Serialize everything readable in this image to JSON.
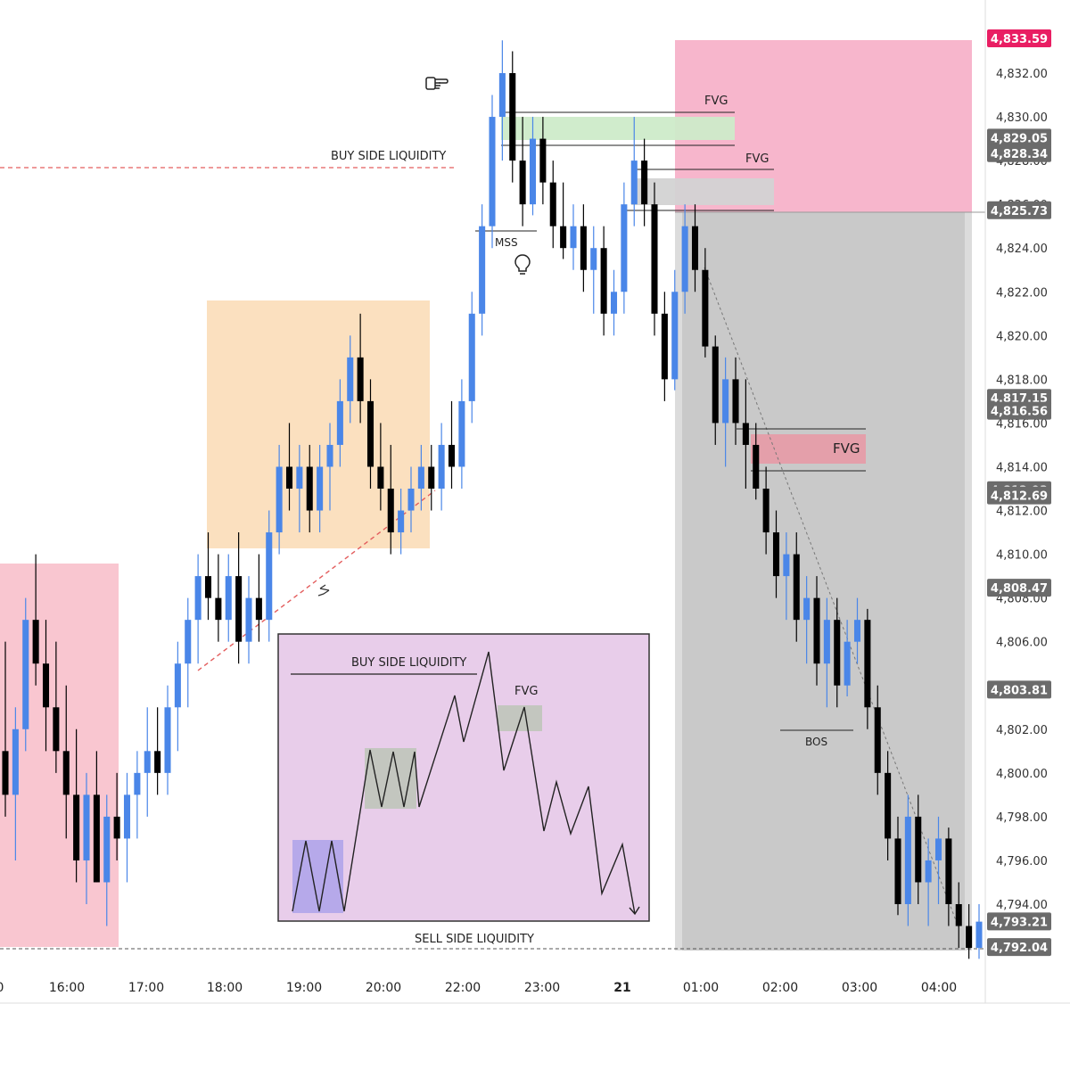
{
  "chart_data": {
    "type": "candlestick",
    "title": "",
    "xlabel": "",
    "ylabel": "",
    "ylim": [
      4791.0,
      4834.5
    ],
    "grid": false,
    "y_ticks": [
      "4,832.00",
      "4,830.00",
      "4,828.00",
      "4,826.00",
      "4,824.00",
      "4,822.00",
      "4,820.00",
      "4,818.00",
      "4,816.00",
      "4,814.00",
      "4,812.00",
      "4,810.00",
      "4,808.00",
      "4,806.00",
      "4,804.00",
      "4,802.00",
      "4,800.00",
      "4,798.00",
      "4,796.00",
      "4,794.00"
    ],
    "x_ticks": [
      "0",
      "16:00",
      "17:00",
      "18:00",
      "19:00",
      "20:00",
      "22:00",
      "23:00",
      "21",
      "01:00",
      "02:00",
      "03:00",
      "04:00"
    ],
    "price_badges": [
      {
        "label": "4,833.59",
        "color": "#e91e63"
      },
      {
        "label": "4,829.05",
        "color": "#6b6b6b"
      },
      {
        "label": "4,828.34",
        "color": "#6b6b6b"
      },
      {
        "label": "4,825.73",
        "color": "#6b6b6b"
      },
      {
        "label": "4,817.15",
        "color": "#6b6b6b"
      },
      {
        "label": "4,816.56",
        "color": "#6b6b6b"
      },
      {
        "label": "4,812.93",
        "color": "#6b6b6b"
      },
      {
        "label": "4,812.69",
        "color": "#6b6b6b"
      },
      {
        "label": "4,808.47",
        "color": "#6b6b6b"
      },
      {
        "label": "4,803.81",
        "color": "#6b6b6b"
      },
      {
        "label": "4,793.21",
        "color": "#6b6b6b"
      },
      {
        "label": "4,792.04",
        "color": "#6b6b6b"
      }
    ],
    "series_colors": {
      "up": "#4a86e8",
      "down": "#000000"
    },
    "zones": [
      {
        "name": "left-pink-zone",
        "color": "#f9c6d0"
      },
      {
        "name": "orange-consolidation-zone",
        "color": "#fbe0bf"
      },
      {
        "name": "top-pink-zone",
        "color": "#f7b6cc"
      },
      {
        "name": "grey-sell-zone",
        "color": "#c9c9c9"
      }
    ],
    "annotations": {
      "buy_side_liquidity": "BUY SIDE LIQUIDITY",
      "sell_side_liquidity": "SELL SIDE LIQUIDITY",
      "mss": "MSS",
      "bos": "BOS",
      "fvg_top_1": "FVG",
      "fvg_top_2": "FVG",
      "fvg_mid": "FVG"
    },
    "inset": {
      "buy_side_liquidity": "BUY SIDE LIQUIDITY",
      "fvg": "FVG",
      "background": "#e8cdea"
    },
    "candles": [
      {
        "o": 4801.0,
        "h": 4806.0,
        "l": 4798.0,
        "c": 4799.0
      },
      {
        "o": 4799.0,
        "h": 4803.0,
        "l": 4796.0,
        "c": 4802.0
      },
      {
        "o": 4802.0,
        "h": 4808.0,
        "l": 4801.0,
        "c": 4807.0
      },
      {
        "o": 4807.0,
        "h": 4810.0,
        "l": 4804.0,
        "c": 4805.0
      },
      {
        "o": 4805.0,
        "h": 4807.0,
        "l": 4801.0,
        "c": 4803.0
      },
      {
        "o": 4803.0,
        "h": 4806.0,
        "l": 4800.0,
        "c": 4801.0
      },
      {
        "o": 4801.0,
        "h": 4804.0,
        "l": 4797.0,
        "c": 4799.0
      },
      {
        "o": 4799.0,
        "h": 4802.0,
        "l": 4795.0,
        "c": 4796.0
      },
      {
        "o": 4796.0,
        "h": 4800.0,
        "l": 4794.0,
        "c": 4799.0
      },
      {
        "o": 4799.0,
        "h": 4801.0,
        "l": 4795.0,
        "c": 4795.0
      },
      {
        "o": 4795.0,
        "h": 4799.0,
        "l": 4793.0,
        "c": 4798.0
      },
      {
        "o": 4798.0,
        "h": 4800.0,
        "l": 4796.0,
        "c": 4797.0
      },
      {
        "o": 4797.0,
        "h": 4800.0,
        "l": 4795.0,
        "c": 4799.0
      },
      {
        "o": 4799.0,
        "h": 4801.0,
        "l": 4797.0,
        "c": 4800.0
      },
      {
        "o": 4800.0,
        "h": 4803.0,
        "l": 4798.0,
        "c": 4801.0
      },
      {
        "o": 4801.0,
        "h": 4803.0,
        "l": 4799.0,
        "c": 4800.0
      },
      {
        "o": 4800.0,
        "h": 4804.0,
        "l": 4799.0,
        "c": 4803.0
      },
      {
        "o": 4803.0,
        "h": 4806.0,
        "l": 4801.0,
        "c": 4805.0
      },
      {
        "o": 4805.0,
        "h": 4808.0,
        "l": 4803.0,
        "c": 4807.0
      },
      {
        "o": 4807.0,
        "h": 4810.0,
        "l": 4805.0,
        "c": 4809.0
      },
      {
        "o": 4809.0,
        "h": 4811.0,
        "l": 4807.0,
        "c": 4808.0
      },
      {
        "o": 4808.0,
        "h": 4810.0,
        "l": 4806.0,
        "c": 4807.0
      },
      {
        "o": 4807.0,
        "h": 4810.0,
        "l": 4806.0,
        "c": 4809.0
      },
      {
        "o": 4809.0,
        "h": 4811.0,
        "l": 4805.0,
        "c": 4806.0
      },
      {
        "o": 4806.0,
        "h": 4809.0,
        "l": 4805.0,
        "c": 4808.0
      },
      {
        "o": 4808.0,
        "h": 4810.0,
        "l": 4806.0,
        "c": 4807.0
      },
      {
        "o": 4807.0,
        "h": 4812.0,
        "l": 4806.0,
        "c": 4811.0
      },
      {
        "o": 4811.0,
        "h": 4815.0,
        "l": 4810.0,
        "c": 4814.0
      },
      {
        "o": 4814.0,
        "h": 4816.0,
        "l": 4812.0,
        "c": 4813.0
      },
      {
        "o": 4813.0,
        "h": 4815.0,
        "l": 4811.0,
        "c": 4814.0
      },
      {
        "o": 4814.0,
        "h": 4815.0,
        "l": 4811.0,
        "c": 4812.0
      },
      {
        "o": 4812.0,
        "h": 4815.0,
        "l": 4811.0,
        "c": 4814.0
      },
      {
        "o": 4814.0,
        "h": 4816.0,
        "l": 4812.0,
        "c": 4815.0
      },
      {
        "o": 4815.0,
        "h": 4818.0,
        "l": 4814.0,
        "c": 4817.0
      },
      {
        "o": 4817.0,
        "h": 4820.0,
        "l": 4816.0,
        "c": 4819.0
      },
      {
        "o": 4819.0,
        "h": 4821.0,
        "l": 4816.0,
        "c": 4817.0
      },
      {
        "o": 4817.0,
        "h": 4818.0,
        "l": 4813.0,
        "c": 4814.0
      },
      {
        "o": 4814.0,
        "h": 4816.0,
        "l": 4812.0,
        "c": 4813.0
      },
      {
        "o": 4813.0,
        "h": 4815.0,
        "l": 4810.0,
        "c": 4811.0
      },
      {
        "o": 4811.0,
        "h": 4813.0,
        "l": 4810.0,
        "c": 4812.0
      },
      {
        "o": 4812.0,
        "h": 4814.0,
        "l": 4811.0,
        "c": 4813.0
      },
      {
        "o": 4813.0,
        "h": 4815.0,
        "l": 4812.0,
        "c": 4814.0
      },
      {
        "o": 4814.0,
        "h": 4815.0,
        "l": 4812.0,
        "c": 4813.0
      },
      {
        "o": 4813.0,
        "h": 4816.0,
        "l": 4812.0,
        "c": 4815.0
      },
      {
        "o": 4815.0,
        "h": 4817.0,
        "l": 4813.0,
        "c": 4814.0
      },
      {
        "o": 4814.0,
        "h": 4818.0,
        "l": 4813.0,
        "c": 4817.0
      },
      {
        "o": 4817.0,
        "h": 4822.0,
        "l": 4816.0,
        "c": 4821.0
      },
      {
        "o": 4821.0,
        "h": 4826.0,
        "l": 4820.0,
        "c": 4825.0
      },
      {
        "o": 4825.0,
        "h": 4831.0,
        "l": 4824.0,
        "c": 4830.0
      },
      {
        "o": 4830.0,
        "h": 4833.5,
        "l": 4828.0,
        "c": 4832.0
      },
      {
        "o": 4832.0,
        "h": 4833.0,
        "l": 4827.0,
        "c": 4828.0
      },
      {
        "o": 4828.0,
        "h": 4830.0,
        "l": 4825.0,
        "c": 4826.0
      },
      {
        "o": 4826.0,
        "h": 4830.0,
        "l": 4825.5,
        "c": 4829.0
      },
      {
        "o": 4829.0,
        "h": 4830.0,
        "l": 4826.0,
        "c": 4827.0
      },
      {
        "o": 4827.0,
        "h": 4828.0,
        "l": 4824.0,
        "c": 4825.0
      },
      {
        "o": 4825.0,
        "h": 4827.0,
        "l": 4823.5,
        "c": 4824.0
      },
      {
        "o": 4824.0,
        "h": 4826.0,
        "l": 4823.0,
        "c": 4825.0
      },
      {
        "o": 4825.0,
        "h": 4826.0,
        "l": 4822.0,
        "c": 4823.0
      },
      {
        "o": 4823.0,
        "h": 4825.0,
        "l": 4821.0,
        "c": 4824.0
      },
      {
        "o": 4824.0,
        "h": 4825.0,
        "l": 4820.0,
        "c": 4821.0
      },
      {
        "o": 4821.0,
        "h": 4823.0,
        "l": 4820.0,
        "c": 4822.0
      },
      {
        "o": 4822.0,
        "h": 4827.0,
        "l": 4821.0,
        "c": 4826.0
      },
      {
        "o": 4826.0,
        "h": 4830.0,
        "l": 4825.0,
        "c": 4828.0
      },
      {
        "o": 4828.0,
        "h": 4829.0,
        "l": 4825.0,
        "c": 4826.0
      },
      {
        "o": 4826.0,
        "h": 4827.0,
        "l": 4820.0,
        "c": 4821.0
      },
      {
        "o": 4821.0,
        "h": 4822.0,
        "l": 4817.0,
        "c": 4818.0
      },
      {
        "o": 4818.0,
        "h": 4823.0,
        "l": 4817.5,
        "c": 4822.0
      },
      {
        "o": 4822.0,
        "h": 4826.0,
        "l": 4821.0,
        "c": 4825.0
      },
      {
        "o": 4825.0,
        "h": 4826.0,
        "l": 4822.0,
        "c": 4823.0
      },
      {
        "o": 4823.0,
        "h": 4824.0,
        "l": 4819.0,
        "c": 4819.5
      },
      {
        "o": 4819.5,
        "h": 4820.0,
        "l": 4815.0,
        "c": 4816.0
      },
      {
        "o": 4816.0,
        "h": 4819.0,
        "l": 4814.0,
        "c": 4818.0
      },
      {
        "o": 4818.0,
        "h": 4819.0,
        "l": 4815.0,
        "c": 4816.0
      },
      {
        "o": 4816.0,
        "h": 4818.0,
        "l": 4813.0,
        "c": 4815.0
      },
      {
        "o": 4815.0,
        "h": 4816.0,
        "l": 4812.5,
        "c": 4813.0
      },
      {
        "o": 4813.0,
        "h": 4814.0,
        "l": 4810.0,
        "c": 4811.0
      },
      {
        "o": 4811.0,
        "h": 4812.0,
        "l": 4808.0,
        "c": 4809.0
      },
      {
        "o": 4809.0,
        "h": 4811.0,
        "l": 4807.0,
        "c": 4810.0
      },
      {
        "o": 4810.0,
        "h": 4811.0,
        "l": 4806.0,
        "c": 4807.0
      },
      {
        "o": 4807.0,
        "h": 4809.0,
        "l": 4805.0,
        "c": 4808.0
      },
      {
        "o": 4808.0,
        "h": 4809.0,
        "l": 4804.0,
        "c": 4805.0
      },
      {
        "o": 4805.0,
        "h": 4808.0,
        "l": 4803.0,
        "c": 4807.0
      },
      {
        "o": 4807.0,
        "h": 4808.0,
        "l": 4803.0,
        "c": 4804.0
      },
      {
        "o": 4804.0,
        "h": 4807.0,
        "l": 4803.5,
        "c": 4806.0
      },
      {
        "o": 4806.0,
        "h": 4808.0,
        "l": 4805.0,
        "c": 4807.0
      },
      {
        "o": 4807.0,
        "h": 4807.5,
        "l": 4802.0,
        "c": 4803.0
      },
      {
        "o": 4803.0,
        "h": 4804.0,
        "l": 4799.0,
        "c": 4800.0
      },
      {
        "o": 4800.0,
        "h": 4801.0,
        "l": 4796.0,
        "c": 4797.0
      },
      {
        "o": 4797.0,
        "h": 4798.0,
        "l": 4793.5,
        "c": 4794.0
      },
      {
        "o": 4794.0,
        "h": 4799.0,
        "l": 4793.0,
        "c": 4798.0
      },
      {
        "o": 4798.0,
        "h": 4799.0,
        "l": 4794.0,
        "c": 4795.0
      },
      {
        "o": 4795.0,
        "h": 4797.0,
        "l": 4793.0,
        "c": 4796.0
      },
      {
        "o": 4796.0,
        "h": 4798.0,
        "l": 4794.0,
        "c": 4797.0
      },
      {
        "o": 4797.0,
        "h": 4797.5,
        "l": 4793.0,
        "c": 4794.0
      },
      {
        "o": 4794.0,
        "h": 4795.0,
        "l": 4792.0,
        "c": 4793.0
      },
      {
        "o": 4793.0,
        "h": 4794.0,
        "l": 4791.5,
        "c": 4792.0
      },
      {
        "o": 4792.0,
        "h": 4794.0,
        "l": 4791.5,
        "c": 4793.2
      }
    ]
  }
}
